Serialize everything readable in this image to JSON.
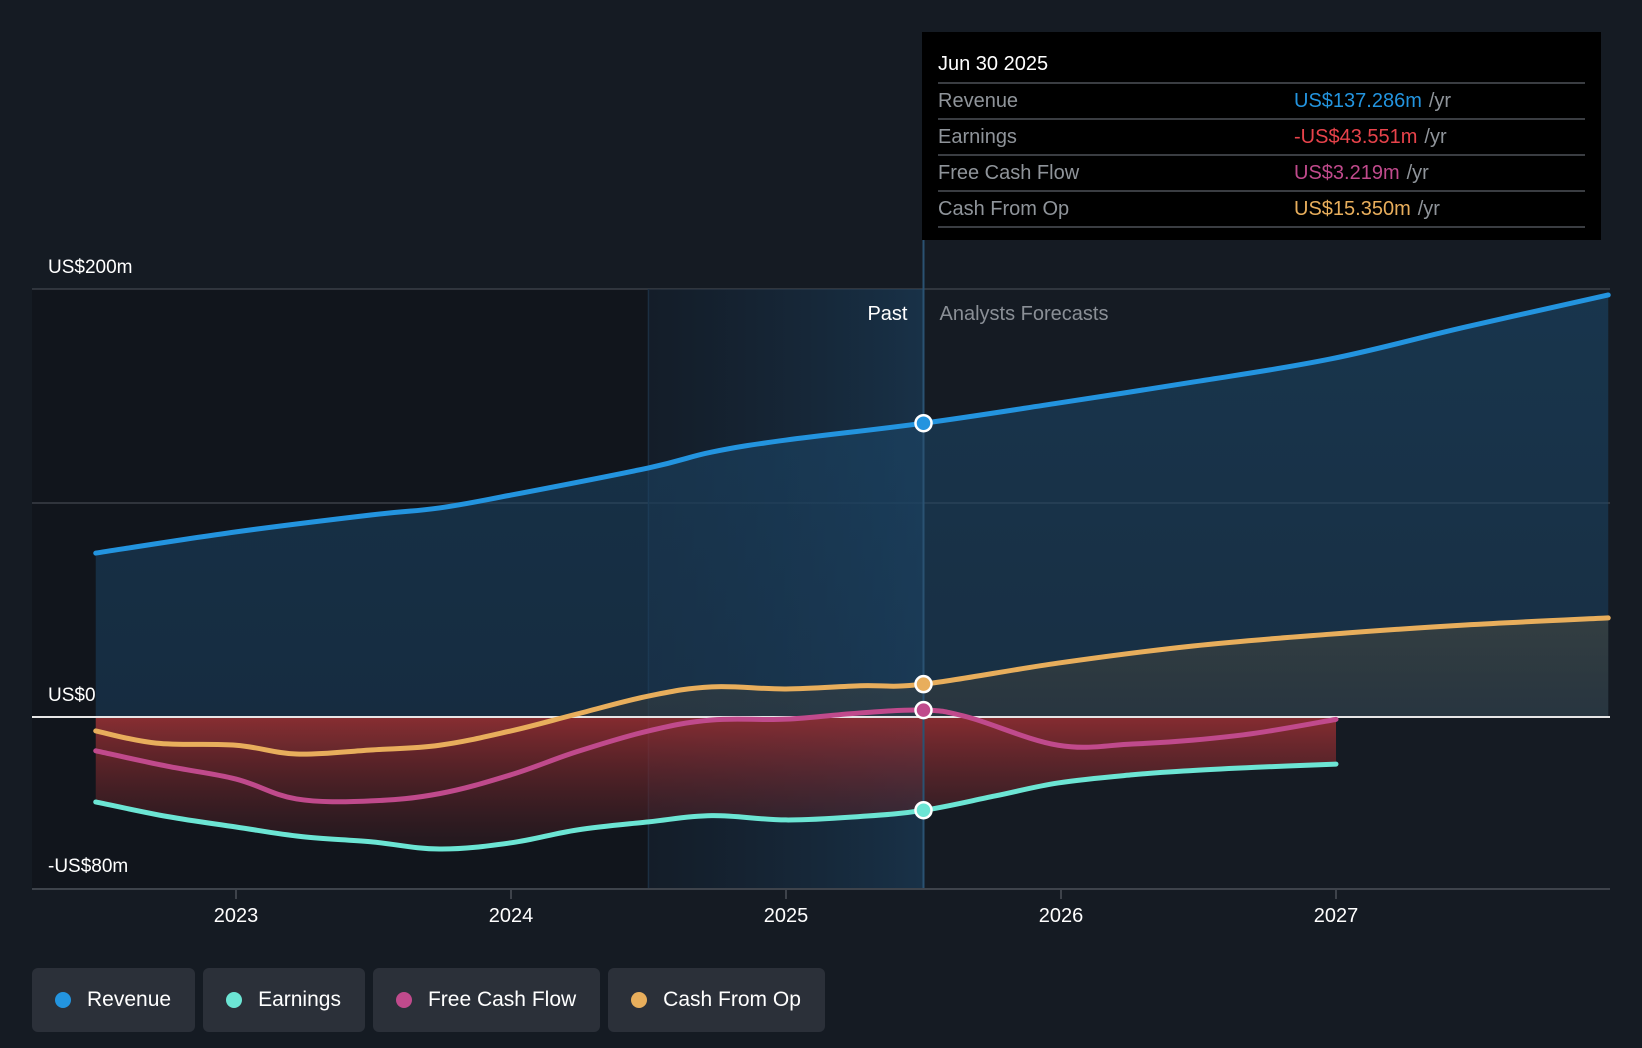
{
  "chart_data": {
    "type": "area",
    "title": "",
    "xlabel": "",
    "ylabel": "",
    "xlim": [
      2022.5,
      2028.0
    ],
    "ylim": [
      -80,
      200
    ],
    "y_ticks": [
      {
        "value": 200,
        "label": "US$200m"
      },
      {
        "value": 0,
        "label": "US$0"
      },
      {
        "value": -80,
        "label": "-US$80m"
      }
    ],
    "y_gridlines": [
      200,
      100,
      0
    ],
    "x_ticks": [
      {
        "value": 2023,
        "label": "2023"
      },
      {
        "value": 2024,
        "label": "2024"
      },
      {
        "value": 2025,
        "label": "2025"
      },
      {
        "value": 2026,
        "label": "2026"
      },
      {
        "value": 2027,
        "label": "2027"
      }
    ],
    "past_region": {
      "start": 2024.5,
      "end": 2025.5,
      "label": "Past"
    },
    "forecast_label": "Analysts Forecasts",
    "cursor_x": 2025.5,
    "legend_position": "bottom-left",
    "series": [
      {
        "name": "Revenue",
        "color": "#2394df",
        "x": [
          2022.49,
          2023.0,
          2023.49,
          2023.74,
          2024.0,
          2024.5,
          2024.73,
          2025.0,
          2025.5,
          2025.99,
          2026.48,
          2026.98,
          2027.47,
          2027.99
        ],
        "y": [
          76.6,
          86.5,
          94.4,
          97.7,
          103.7,
          116.4,
          123.8,
          129.4,
          137.3,
          146.7,
          156.5,
          167.3,
          182.2,
          197.2
        ]
      },
      {
        "name": "Earnings",
        "color": "#6ce5d4",
        "x": [
          2022.49,
          2022.75,
          2023.0,
          2023.24,
          2023.49,
          2023.74,
          2024.0,
          2024.24,
          2024.5,
          2024.73,
          2025.0,
          2025.27,
          2025.5,
          2025.76,
          2025.99,
          2026.26,
          2026.48,
          2026.71,
          2027.0
        ],
        "y": [
          -39.7,
          -46.5,
          -51.4,
          -55.9,
          -58.3,
          -61.7,
          -58.8,
          -52.8,
          -49.0,
          -46.1,
          -48.1,
          -46.5,
          -43.6,
          -36.9,
          -30.8,
          -27.0,
          -25.0,
          -23.5,
          -22.0
        ]
      },
      {
        "name": "Free Cash Flow",
        "color": "#c04a8c",
        "x": [
          2022.49,
          2022.75,
          2023.0,
          2023.22,
          2023.49,
          2023.74,
          2024.0,
          2024.24,
          2024.5,
          2024.73,
          2025.0,
          2025.27,
          2025.5,
          2025.66,
          2025.99,
          2026.26,
          2026.48,
          2026.71,
          2027.0
        ],
        "y": [
          -15.8,
          -23.0,
          -29.0,
          -38.3,
          -39.2,
          -35.8,
          -27.0,
          -16.2,
          -6.5,
          -1.4,
          -1.0,
          1.9,
          3.219,
          0.0,
          -13.2,
          -12.6,
          -10.8,
          -7.5,
          -1.1
        ]
      },
      {
        "name": "Cash From Op",
        "color": "#e8ae5c",
        "x": [
          2022.49,
          2022.71,
          2023.0,
          2023.22,
          2023.49,
          2023.74,
          2024.0,
          2024.24,
          2024.5,
          2024.73,
          2025.0,
          2025.27,
          2025.5,
          2025.99,
          2026.48,
          2026.98,
          2027.47,
          2027.99
        ],
        "y": [
          -6.5,
          -12.2,
          -13.2,
          -17.3,
          -15.4,
          -13.2,
          -6.5,
          1.4,
          9.8,
          14.1,
          13.1,
          14.6,
          15.35,
          25.2,
          33.2,
          38.7,
          43.0,
          46.3
        ]
      }
    ],
    "highlight_points": [
      {
        "series": "Revenue",
        "x": 2025.5,
        "y": 137.286
      },
      {
        "series": "Cash From Op",
        "x": 2025.5,
        "y": 15.35
      },
      {
        "series": "Free Cash Flow",
        "x": 2025.5,
        "y": 3.219
      },
      {
        "series": "Earnings",
        "x": 2025.5,
        "y": -43.551
      }
    ]
  },
  "tooltip": {
    "date": "Jun 30 2025",
    "unit": "/yr",
    "rows": [
      {
        "name": "Revenue",
        "value": "US$137.286m",
        "color": "#2394df"
      },
      {
        "name": "Earnings",
        "value": "-US$43.551m",
        "color": "#e8434b"
      },
      {
        "name": "Free Cash Flow",
        "value": "US$3.219m",
        "color": "#c04a8c"
      },
      {
        "name": "Cash From Op",
        "value": "US$15.350m",
        "color": "#e8ae5c"
      }
    ]
  },
  "legend": {
    "items": [
      {
        "label": "Revenue",
        "color": "#2394df"
      },
      {
        "label": "Earnings",
        "color": "#6ce5d4"
      },
      {
        "label": "Free Cash Flow",
        "color": "#c04a8c"
      },
      {
        "label": "Cash From Op",
        "color": "#e8ae5c"
      }
    ]
  }
}
